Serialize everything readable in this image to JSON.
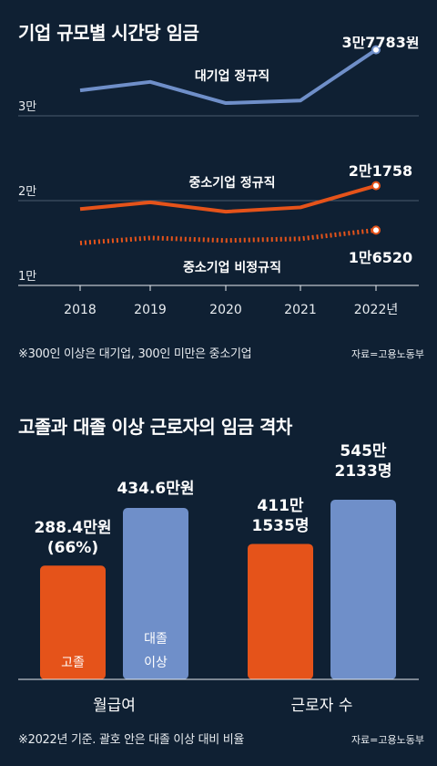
{
  "chart_data": [
    {
      "type": "line",
      "title": "기업 규모별 시간당 임금",
      "x": [
        "2018",
        "2019",
        "2020",
        "2021",
        "2022년"
      ],
      "y_ticks": [
        {
          "label": "1만",
          "value": 10000
        },
        {
          "label": "2만",
          "value": 20000
        },
        {
          "label": "3만",
          "value": 30000
        }
      ],
      "ylim": [
        7000,
        40000
      ],
      "grid": true,
      "series": [
        {
          "name": "대기업 정규직",
          "values": [
            33000,
            34000,
            31500,
            31800,
            37783
          ],
          "color": "#6f8fc9",
          "style": "solid",
          "end_label": "3만7783원"
        },
        {
          "name": "중소기업 정규직",
          "values": [
            19000,
            19800,
            18700,
            19200,
            21758
          ],
          "color": "#e5531a",
          "style": "solid",
          "end_label": "2만1758"
        },
        {
          "name": "중소기업 비정규직",
          "values": [
            15000,
            15600,
            15300,
            15500,
            16520
          ],
          "color": "#e5531a",
          "style": "dotted",
          "end_label": "1만6520"
        }
      ]
    },
    {
      "type": "bar",
      "title": "고졸과 대졸 이상 근로자의 임금 격차",
      "categories": [
        "월급여",
        "근로자 수"
      ],
      "series": [
        {
          "name": "고졸",
          "values": [
            288.4,
            4111535
          ],
          "color": "#e5531a",
          "labels": [
            "288.4만원\n(66%)",
            "411만\n1535명"
          ]
        },
        {
          "name": "대졸 이상",
          "values": [
            434.6,
            5452133
          ],
          "color": "#6f8fc9",
          "labels": [
            "434.6만원",
            "545만\n2133명"
          ]
        }
      ]
    }
  ],
  "notes": {
    "chart1": "※300인 이상은 대기업, 300인 미만은 중소기업",
    "chart2": "※2022년 기준. 괄호 안은 대졸 이상 대비 비율"
  },
  "source": "자료=고용노동부"
}
